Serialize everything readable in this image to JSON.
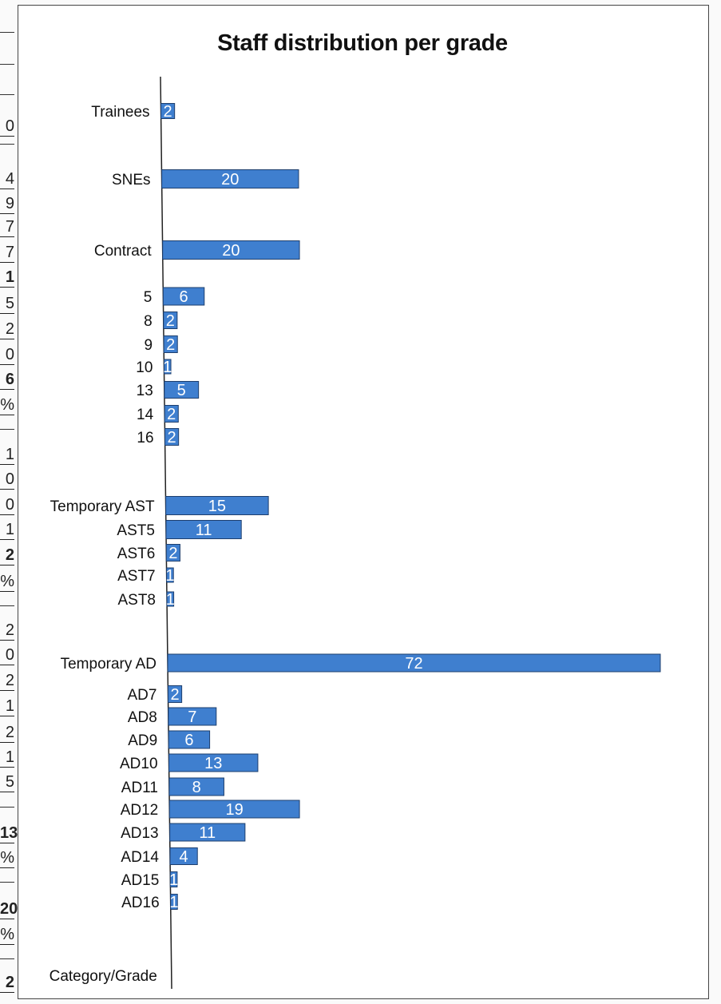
{
  "chart_data": {
    "type": "bar",
    "orientation": "horizontal",
    "title": "Staff distribution per grade",
    "axis_label": "Category/Grade",
    "bar_color": "#3f7fcf",
    "categories": [
      "Trainees",
      "SNEs",
      "Contract",
      "5",
      "8",
      "9",
      "10",
      "13",
      "14",
      "16",
      "Temporary AST",
      "AST5",
      "AST6",
      "AST7",
      "AST8",
      "Temporary AD",
      "AD7",
      "AD8",
      "AD9",
      "AD10",
      "AD11",
      "AD12",
      "AD13",
      "AD14",
      "AD15",
      "AD16"
    ],
    "values": [
      2,
      20,
      20,
      6,
      2,
      2,
      1,
      5,
      2,
      2,
      15,
      11,
      2,
      1,
      1,
      72,
      2,
      7,
      6,
      13,
      8,
      19,
      11,
      4,
      1,
      1
    ]
  },
  "side_strip": {
    "cells": [
      "0",
      "4",
      "9",
      "7",
      "7",
      "1",
      "5",
      "2",
      "0",
      "6",
      "%",
      "1",
      "0",
      "0",
      "1",
      "2",
      "%",
      "2",
      "0",
      "2",
      "1",
      "2",
      "1",
      "5",
      "13",
      "%",
      "20",
      "%",
      "2"
    ]
  }
}
